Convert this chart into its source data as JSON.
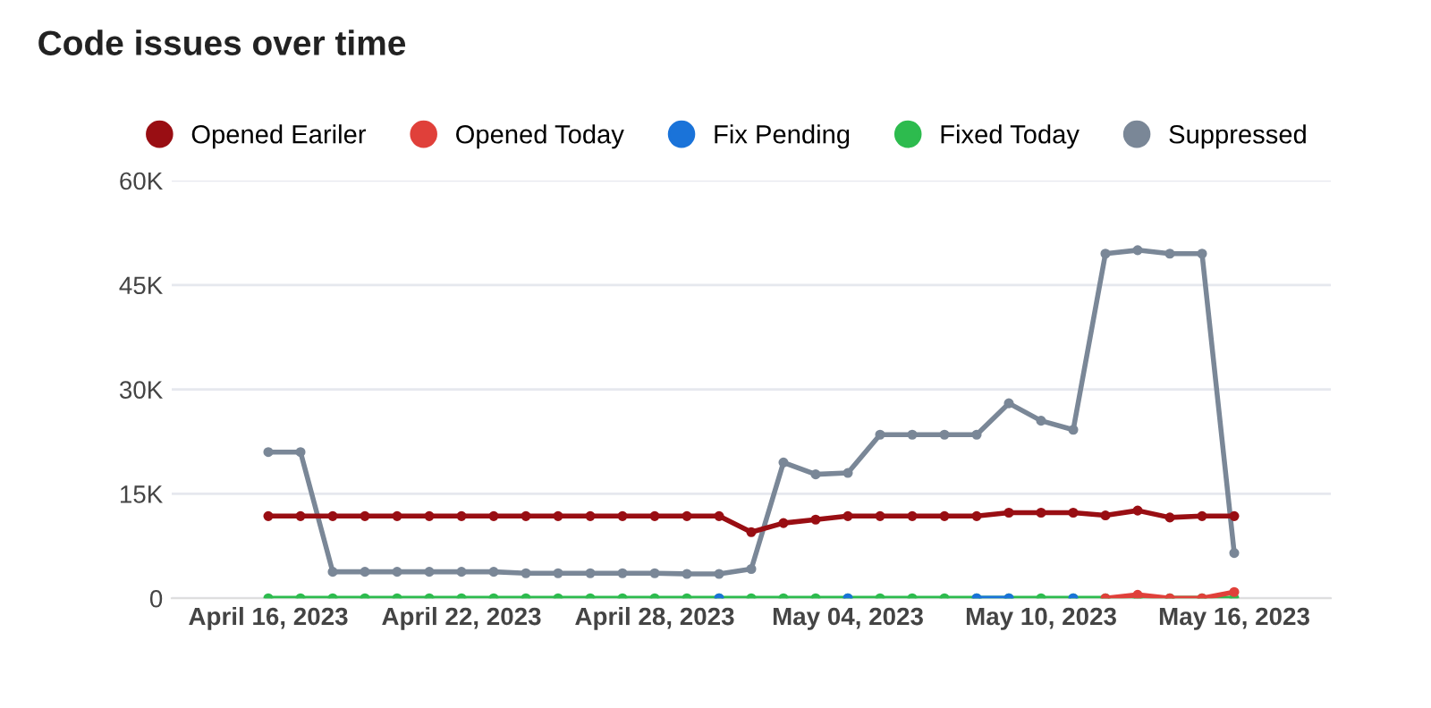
{
  "chart_data": {
    "type": "line",
    "title": "Code issues over time",
    "x": [
      "2023-04-16",
      "2023-04-17",
      "2023-04-18",
      "2023-04-19",
      "2023-04-20",
      "2023-04-21",
      "2023-04-22",
      "2023-04-23",
      "2023-04-24",
      "2023-04-25",
      "2023-04-26",
      "2023-04-27",
      "2023-04-28",
      "2023-04-29",
      "2023-04-30",
      "2023-05-01",
      "2023-05-02",
      "2023-05-03",
      "2023-05-04",
      "2023-05-05",
      "2023-05-06",
      "2023-05-07",
      "2023-05-08",
      "2023-05-09",
      "2023-05-10",
      "2023-05-11",
      "2023-05-12",
      "2023-05-13",
      "2023-05-14",
      "2023-05-15",
      "2023-05-16"
    ],
    "series": [
      {
        "name": "Opened Eariler",
        "color": "#990e13",
        "values": [
          11800,
          11800,
          11800,
          11800,
          11800,
          11800,
          11800,
          11800,
          11800,
          11800,
          11800,
          11800,
          11800,
          11800,
          11800,
          9500,
          10800,
          11300,
          11800,
          11800,
          11800,
          11800,
          11800,
          12300,
          12300,
          12300,
          11900,
          12600,
          11600,
          11800,
          11800
        ]
      },
      {
        "name": "Opened Today",
        "color": "#e0403a",
        "values": [
          null,
          null,
          null,
          null,
          null,
          null,
          null,
          null,
          null,
          null,
          null,
          null,
          null,
          null,
          null,
          null,
          null,
          null,
          null,
          null,
          null,
          null,
          null,
          null,
          null,
          null,
          0,
          500,
          0,
          0,
          900
        ]
      },
      {
        "name": "Fix Pending",
        "color": "#1a73d9",
        "values": [
          null,
          null,
          null,
          null,
          null,
          null,
          null,
          null,
          null,
          null,
          null,
          null,
          null,
          null,
          0,
          null,
          null,
          null,
          0,
          null,
          null,
          null,
          0,
          0,
          null,
          0,
          null,
          null,
          null,
          null,
          null
        ]
      },
      {
        "name": "Fixed Today",
        "color": "#2dbb4e",
        "values": [
          0,
          0,
          0,
          0,
          0,
          0,
          0,
          0,
          0,
          0,
          0,
          0,
          0,
          0,
          0,
          0,
          0,
          0,
          0,
          0,
          0,
          0,
          0,
          0,
          0,
          0,
          0,
          0,
          0,
          0,
          0
        ]
      },
      {
        "name": "Suppressed",
        "color": "#7a8797",
        "values": [
          21000,
          21000,
          3800,
          3800,
          3800,
          3800,
          3800,
          3800,
          3600,
          3600,
          3600,
          3600,
          3600,
          3500,
          3500,
          4200,
          19500,
          17800,
          18000,
          23500,
          23500,
          23500,
          23500,
          28000,
          25500,
          24200,
          49500,
          50000,
          49500,
          49500,
          6500
        ]
      }
    ],
    "xlim": [
      "2023-04-13",
      "2023-05-19"
    ],
    "xticks": [
      {
        "value": "2023-04-16",
        "label": "April 16, 2023"
      },
      {
        "value": "2023-04-22",
        "label": "April 22, 2023"
      },
      {
        "value": "2023-04-28",
        "label": "April 28, 2023"
      },
      {
        "value": "2023-05-04",
        "label": "May 04, 2023"
      },
      {
        "value": "2023-05-10",
        "label": "May 10, 2023"
      },
      {
        "value": "2023-05-16",
        "label": "May 16, 2023"
      }
    ],
    "ylim": [
      0,
      60000
    ],
    "yticks": [
      0,
      {
        "value": 15000,
        "label": "15K"
      },
      {
        "value": 30000,
        "label": "30K"
      },
      {
        "value": 45000,
        "label": "45K"
      },
      {
        "value": 60000,
        "label": "60K"
      }
    ],
    "grid": "y",
    "legend": "top right",
    "marker": "circle",
    "line_style": "solid"
  }
}
